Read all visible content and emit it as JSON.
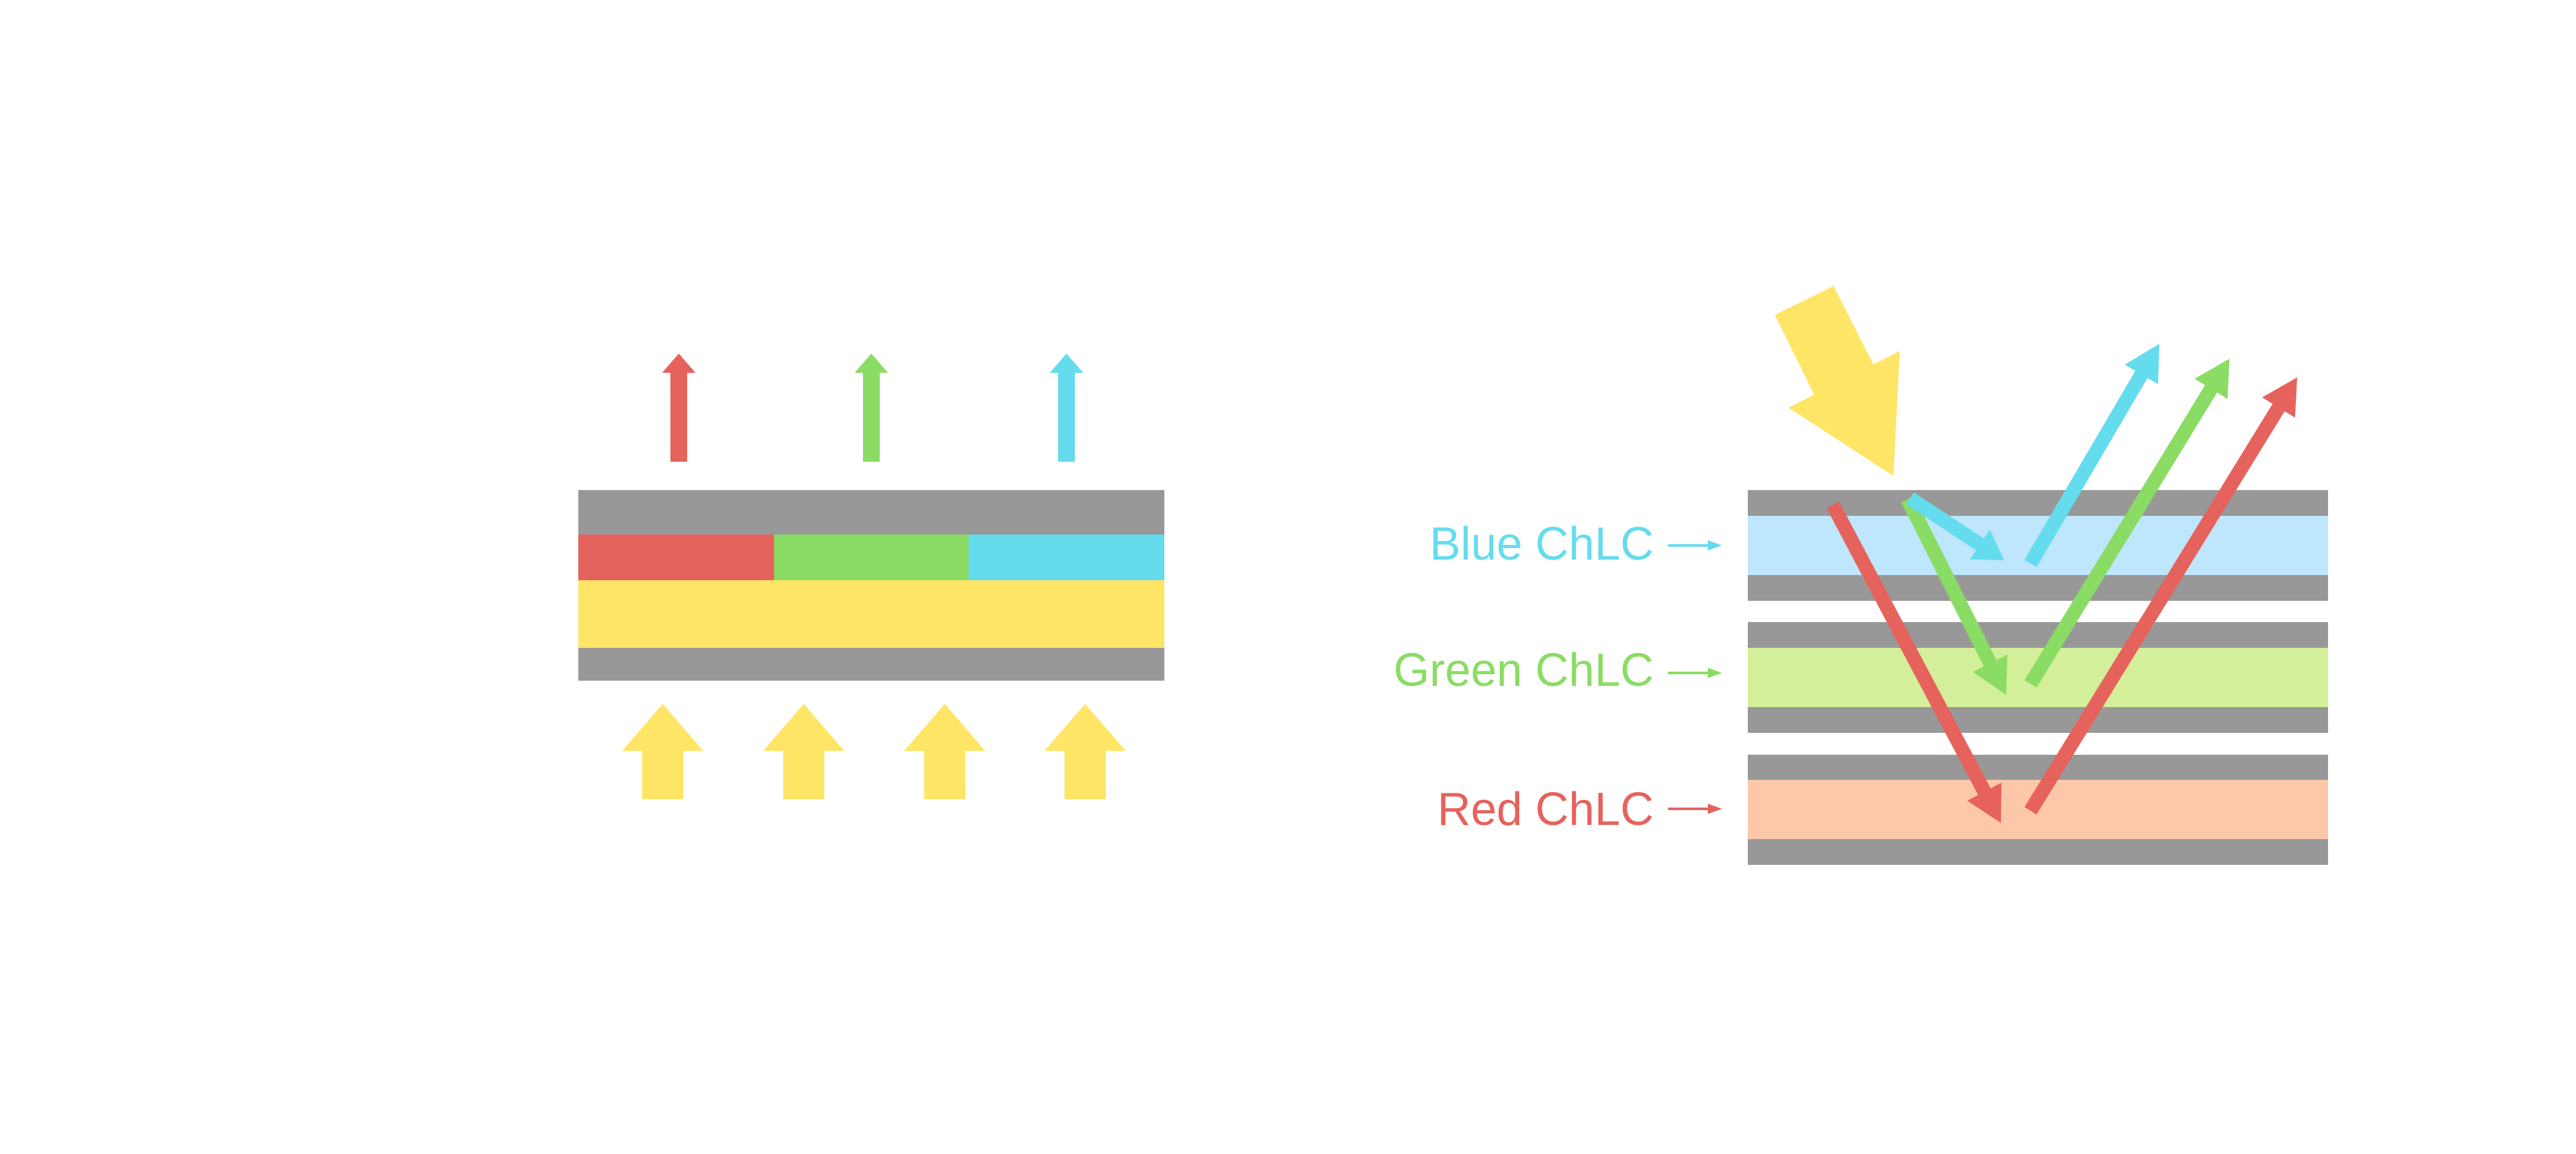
{
  "colors": {
    "red": "#E6625C",
    "green": "#8ADC64",
    "blue": "#64DCEE",
    "yellow": "#FFE566",
    "gray": "#989898",
    "blue_layer": "#BEE6FC",
    "green_layer": "#D4EF9A",
    "red_layer": "#FDC8A9"
  },
  "right_diagram": {
    "labels": [
      {
        "text": "Blue ChLC",
        "color": "#64DCEE"
      },
      {
        "text": "Green ChLC",
        "color": "#8ADC64"
      },
      {
        "text": "Red ChLC",
        "color": "#E6625C"
      }
    ]
  }
}
